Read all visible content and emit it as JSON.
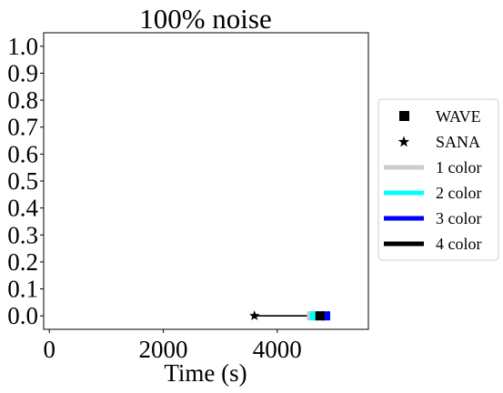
{
  "chart_data": {
    "type": "scatter",
    "title": "100% noise",
    "xlabel": "Time (s)",
    "ylabel": "",
    "xlim": [
      -100,
      5600
    ],
    "ylim": [
      -0.05,
      1.05
    ],
    "x_ticks": [
      0,
      2000,
      4000
    ],
    "x_tick_labels": [
      "0",
      "2000",
      "4000"
    ],
    "y_ticks": [
      0.0,
      0.1,
      0.2,
      0.3,
      0.4,
      0.5,
      0.6,
      0.7,
      0.8,
      0.9,
      1.0
    ],
    "y_tick_labels": [
      "0.0",
      "0.1",
      "0.2",
      "0.3",
      "0.4",
      "0.5",
      "0.6",
      "0.7",
      "0.8",
      "0.9",
      "1.0"
    ],
    "grid": false,
    "legend_placement": "outside-right",
    "legend": [
      {
        "label": "WAVE",
        "marker": "square",
        "color": "#000000"
      },
      {
        "label": "SANA",
        "marker": "star",
        "color": "#000000"
      },
      {
        "label": "1 color",
        "marker": "line",
        "color": "#cccccc"
      },
      {
        "label": "2 color",
        "marker": "line",
        "color": "#00ffff"
      },
      {
        "label": "3 color",
        "marker": "line",
        "color": "#0000ff"
      },
      {
        "label": "4 color",
        "marker": "line",
        "color": "#000000"
      }
    ],
    "series": [
      {
        "name": "1 color",
        "color": "#cccccc",
        "points": [
          {
            "x": 4600,
            "y": 0.0,
            "marker": "square"
          }
        ]
      },
      {
        "name": "2 color",
        "color": "#00ffff",
        "points": [
          {
            "x": 4650,
            "y": 0.0,
            "marker": "square"
          }
        ]
      },
      {
        "name": "3 color",
        "color": "#0000ff",
        "points": [
          {
            "x": 4850,
            "y": 0.0,
            "marker": "square"
          }
        ]
      },
      {
        "name": "4 color",
        "color": "#000000",
        "points": [
          {
            "x": 3600,
            "y": 0.0,
            "marker": "star"
          },
          {
            "x": 4750,
            "y": 0.0,
            "marker": "square"
          }
        ]
      }
    ]
  }
}
